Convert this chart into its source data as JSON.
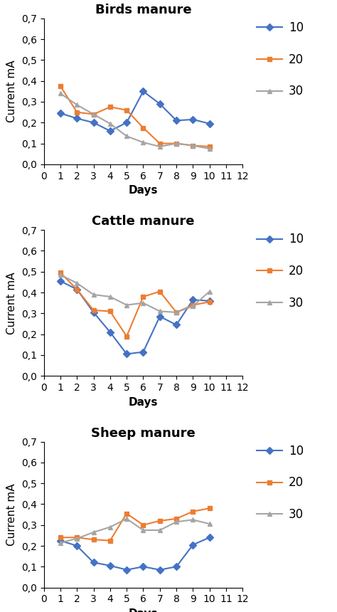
{
  "birds": {
    "title": "Birds manure",
    "series": {
      "10": {
        "days": [
          1,
          2,
          3,
          4,
          5,
          6,
          7,
          8,
          9,
          10
        ],
        "values": [
          0.245,
          0.22,
          0.2,
          0.16,
          0.2,
          0.35,
          0.29,
          0.21,
          0.215,
          0.195
        ],
        "color": "#4472C4",
        "marker": "D"
      },
      "20": {
        "days": [
          1,
          2,
          3,
          4,
          5,
          6,
          7,
          8,
          9,
          10
        ],
        "values": [
          0.375,
          0.25,
          0.24,
          0.275,
          0.26,
          0.175,
          0.1,
          0.1,
          0.09,
          0.085
        ],
        "color": "#ED7D31",
        "marker": "s"
      },
      "30": {
        "days": [
          1,
          2,
          3,
          4,
          5,
          6,
          7,
          8,
          9,
          10
        ],
        "values": [
          0.34,
          0.285,
          0.24,
          0.195,
          0.135,
          0.105,
          0.085,
          0.1,
          0.09,
          0.075
        ],
        "color": "#A5A5A5",
        "marker": "^"
      }
    }
  },
  "cattle": {
    "title": "Cattle manure",
    "series": {
      "10": {
        "days": [
          1,
          2,
          3,
          4,
          5,
          6,
          7,
          8,
          9,
          10
        ],
        "values": [
          0.455,
          0.415,
          0.305,
          0.21,
          0.105,
          0.115,
          0.285,
          0.245,
          0.365,
          0.36
        ],
        "color": "#4472C4",
        "marker": "D"
      },
      "20": {
        "days": [
          1,
          2,
          3,
          4,
          5,
          6,
          7,
          8,
          9,
          10
        ],
        "values": [
          0.495,
          0.415,
          0.315,
          0.31,
          0.19,
          0.38,
          0.405,
          0.305,
          0.34,
          0.355
        ],
        "color": "#ED7D31",
        "marker": "s"
      },
      "30": {
        "days": [
          1,
          2,
          3,
          4,
          5,
          6,
          7,
          8,
          9,
          10
        ],
        "values": [
          0.485,
          0.445,
          0.39,
          0.38,
          0.34,
          0.35,
          0.31,
          0.305,
          0.335,
          0.405
        ],
        "color": "#A5A5A5",
        "marker": "^"
      }
    }
  },
  "sheep": {
    "title": "Sheep manure",
    "series": {
      "10": {
        "days": [
          1,
          2,
          3,
          4,
          5,
          6,
          7,
          8,
          9,
          10
        ],
        "values": [
          0.225,
          0.2,
          0.12,
          0.105,
          0.085,
          0.1,
          0.085,
          0.1,
          0.205,
          0.24
        ],
        "color": "#4472C4",
        "marker": "D"
      },
      "20": {
        "days": [
          1,
          2,
          3,
          4,
          5,
          6,
          7,
          8,
          9,
          10
        ],
        "values": [
          0.24,
          0.24,
          0.23,
          0.225,
          0.355,
          0.3,
          0.32,
          0.33,
          0.365,
          0.38
        ],
        "color": "#ED7D31",
        "marker": "s"
      },
      "30": {
        "days": [
          1,
          2,
          3,
          4,
          5,
          6,
          7,
          8,
          9,
          10
        ],
        "values": [
          0.215,
          0.235,
          0.265,
          0.29,
          0.33,
          0.275,
          0.275,
          0.315,
          0.325,
          0.305
        ],
        "color": "#A5A5A5",
        "marker": "^"
      }
    }
  },
  "ylabel": "Current mA",
  "xlabel": "Days",
  "ylim": [
    0.0,
    0.7
  ],
  "yticks": [
    0.0,
    0.1,
    0.2,
    0.3,
    0.4,
    0.5,
    0.6,
    0.7
  ],
  "ytick_labels": [
    "0,0",
    "0,1",
    "0,2",
    "0,3",
    "0,4",
    "0,5",
    "0,6",
    "0,7"
  ],
  "xlim": [
    0,
    12
  ],
  "xticks": [
    0,
    1,
    2,
    3,
    4,
    5,
    6,
    7,
    8,
    9,
    10,
    11,
    12
  ],
  "legend_labels": [
    "10",
    "20",
    "30"
  ],
  "title_fontsize": 13,
  "axis_label_fontsize": 11,
  "tick_fontsize": 10,
  "legend_fontsize": 12,
  "background_color": "#ffffff"
}
